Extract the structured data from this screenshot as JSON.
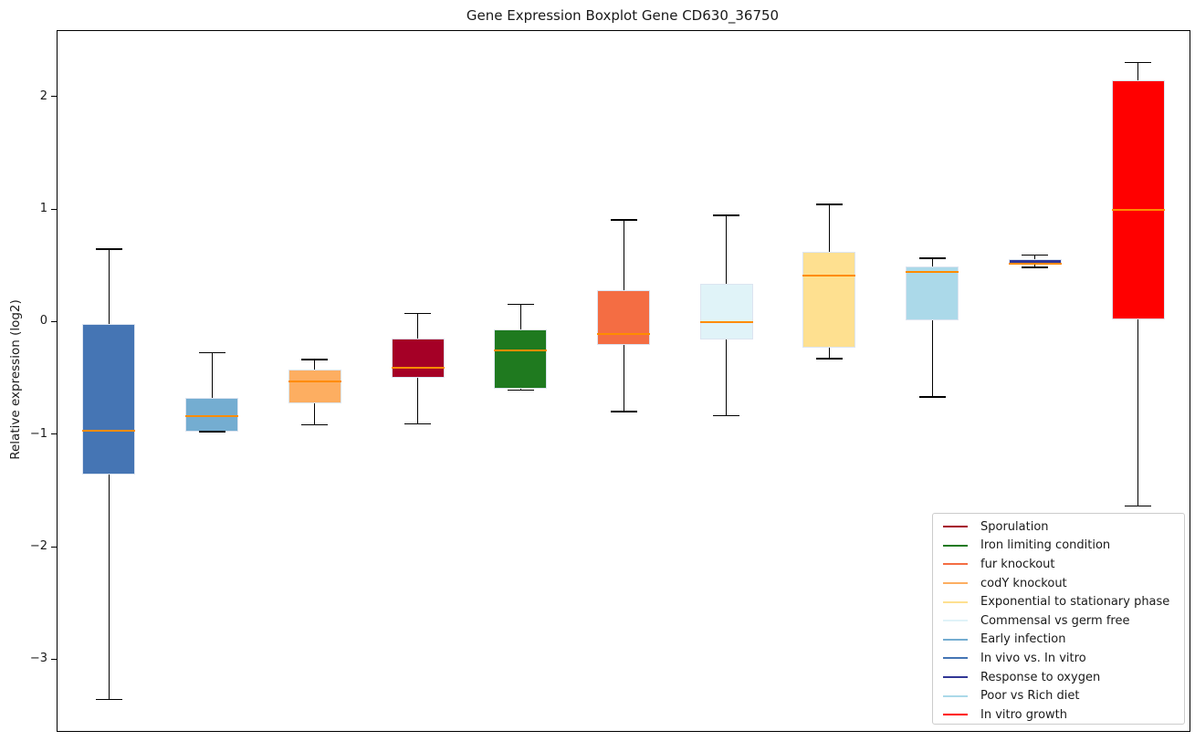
{
  "chart_data": {
    "type": "boxplot",
    "title": "Gene Expression Boxplot Gene CD630_36750",
    "ylabel": "Relative expression (log2)",
    "xlabel": "",
    "grid": false,
    "ylim": [
      -3.63,
      2.59
    ],
    "yticks": [
      {
        "label": "2",
        "value": 2
      },
      {
        "label": "1",
        "value": 1
      },
      {
        "label": "0",
        "value": 0
      },
      {
        "label": "−1",
        "value": -1
      },
      {
        "label": "−2",
        "value": -2
      },
      {
        "label": "−3",
        "value": -3
      }
    ],
    "colors": {
      "median_line": "#ff8c00",
      "whisker": "#000000",
      "box_edge": "#dce4f0",
      "spine": "#000000",
      "legend_border": "#cccccc",
      "text": "#1a1a1a"
    },
    "series": [
      {
        "name": "In vivo vs. In vitro",
        "color": "#4575b4",
        "whislo": -3.35,
        "q1": -1.35,
        "med": -0.96,
        "q3": -0.01,
        "whishi": 0.65
      },
      {
        "name": "Early infection",
        "color": "#74add1",
        "whislo": -0.97,
        "q1": -0.97,
        "med": -0.83,
        "q3": -0.67,
        "whishi": -0.27
      },
      {
        "name": "codY knockout",
        "color": "#fdae61",
        "whislo": -0.91,
        "q1": -0.72,
        "med": -0.52,
        "q3": -0.42,
        "whishi": -0.33
      },
      {
        "name": "Sporulation",
        "color": "#a50026",
        "whislo": -0.9,
        "q1": -0.49,
        "med": -0.4,
        "q3": -0.14,
        "whishi": 0.08
      },
      {
        "name": "Iron limiting condition",
        "color": "#1f7a1f",
        "whislo": -0.6,
        "q1": -0.59,
        "med": -0.25,
        "q3": -0.06,
        "whishi": 0.16
      },
      {
        "name": "fur knockout",
        "color": "#f46d43",
        "whislo": -0.79,
        "q1": -0.2,
        "med": -0.1,
        "q3": 0.29,
        "whishi": 0.91
      },
      {
        "name": "Commensal vs germ free",
        "color": "#e0f3f8",
        "whislo": -0.83,
        "q1": -0.15,
        "med": 0.0,
        "q3": 0.34,
        "whishi": 0.95
      },
      {
        "name": "Exponential to stationary phase",
        "color": "#fee090",
        "whislo": -0.32,
        "q1": -0.22,
        "med": 0.42,
        "q3": 0.63,
        "whishi": 1.05
      },
      {
        "name": "Poor vs Rich diet",
        "color": "#abd9e9",
        "whislo": -0.66,
        "q1": 0.02,
        "med": 0.45,
        "q3": 0.5,
        "whishi": 0.57
      },
      {
        "name": "Response to oxygen",
        "color": "#313695",
        "whislo": 0.49,
        "q1": 0.51,
        "med": 0.52,
        "q3": 0.56,
        "whishi": 0.6
      },
      {
        "name": "In vitro growth",
        "color": "#ff0000",
        "whislo": -1.63,
        "q1": 0.03,
        "med": 1.0,
        "q3": 2.15,
        "whishi": 2.31
      }
    ],
    "legend": {
      "position": "lower right",
      "entries": [
        {
          "label": "Sporulation",
          "color": "#a50026"
        },
        {
          "label": "Iron limiting condition",
          "color": "#1f7a1f"
        },
        {
          "label": "fur knockout",
          "color": "#f46d43"
        },
        {
          "label": "codY knockout",
          "color": "#fdae61"
        },
        {
          "label": "Exponential to stationary phase",
          "color": "#fee090"
        },
        {
          "label": "Commensal vs germ free",
          "color": "#e0f3f8"
        },
        {
          "label": "Early infection",
          "color": "#74add1"
        },
        {
          "label": "In vivo vs. In vitro",
          "color": "#4575b4"
        },
        {
          "label": "Response to oxygen",
          "color": "#313695"
        },
        {
          "label": "Poor vs Rich diet",
          "color": "#abd9e9"
        },
        {
          "label": "In vitro growth",
          "color": "#ff0000"
        }
      ]
    }
  }
}
